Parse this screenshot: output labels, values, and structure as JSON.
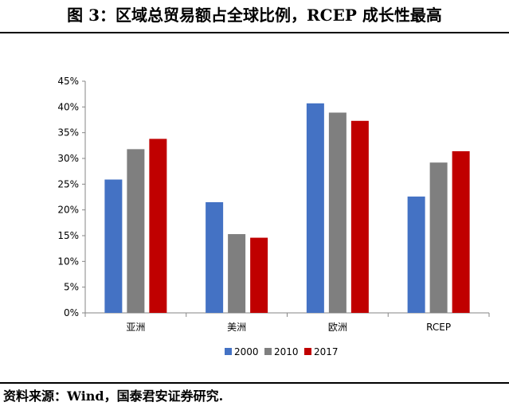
{
  "header": {
    "title": "图 3：区域总贸易额占全球比例，RCEP 成长性最高"
  },
  "footer": {
    "source": "资料来源：Wind，国泰君安证券研究."
  },
  "chart_data": {
    "type": "bar",
    "title": "",
    "xlabel": "",
    "ylabel": "",
    "categories": [
      "亚洲",
      "美洲",
      "欧洲",
      "RCEP"
    ],
    "series": [
      {
        "name": "2000",
        "color": "#4472C4",
        "values": [
          0.259,
          0.215,
          0.407,
          0.226
        ]
      },
      {
        "name": "2010",
        "color": "#7F7F7F",
        "values": [
          0.318,
          0.153,
          0.389,
          0.292
        ]
      },
      {
        "name": "2017",
        "color": "#C00000",
        "values": [
          0.338,
          0.146,
          0.373,
          0.314
        ]
      }
    ],
    "ylim": [
      0,
      0.45
    ],
    "yticks": [
      "0%",
      "5%",
      "10%",
      "15%",
      "20%",
      "25%",
      "30%",
      "35%",
      "40%",
      "45%"
    ],
    "grid": false,
    "legend_position": "bottom"
  }
}
